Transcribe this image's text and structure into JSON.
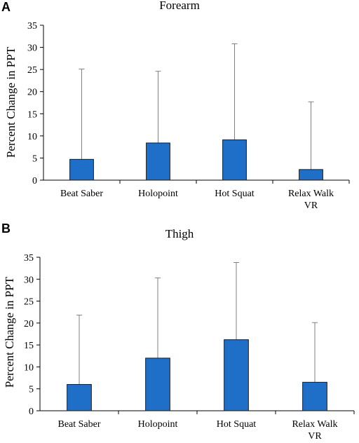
{
  "chart_data": [
    {
      "panel": "A",
      "type": "bar",
      "title": "Forearm",
      "ylabel": "Percent Change in PPT",
      "xlabel": "",
      "categories": [
        "Beat Saber",
        "Holopoint",
        "Hot Squat",
        "Relax Walk VR"
      ],
      "category_lines": [
        [
          "Beat Saber"
        ],
        [
          "Holopoint"
        ],
        [
          "Hot Squat"
        ],
        [
          "Relax Walk",
          "VR"
        ]
      ],
      "values": [
        4.7,
        8.4,
        9.1,
        2.4
      ],
      "error_upper": [
        25.1,
        24.6,
        30.8,
        17.7
      ],
      "ylim": [
        0,
        35
      ],
      "yticks": [
        0,
        5,
        10,
        15,
        20,
        25,
        30,
        35
      ],
      "grid": false,
      "bar_color": "#1f6fc8"
    },
    {
      "panel": "B",
      "type": "bar",
      "title": "Thigh",
      "ylabel": "Percent Change in PPT",
      "xlabel": "",
      "categories": [
        "Beat Saber",
        "Holopoint",
        "Hot Squat",
        "Relax Walk VR"
      ],
      "category_lines": [
        [
          "Beat Saber"
        ],
        [
          "Holopoint"
        ],
        [
          "Hot Squat"
        ],
        [
          "Relax Walk",
          "VR"
        ]
      ],
      "values": [
        6.0,
        12.0,
        16.2,
        6.5
      ],
      "error_upper": [
        21.8,
        30.3,
        33.8,
        20.1
      ],
      "ylim": [
        0,
        35
      ],
      "yticks": [
        0,
        5,
        10,
        15,
        20,
        25,
        30,
        35
      ],
      "grid": false,
      "bar_color": "#1f6fc8"
    }
  ]
}
